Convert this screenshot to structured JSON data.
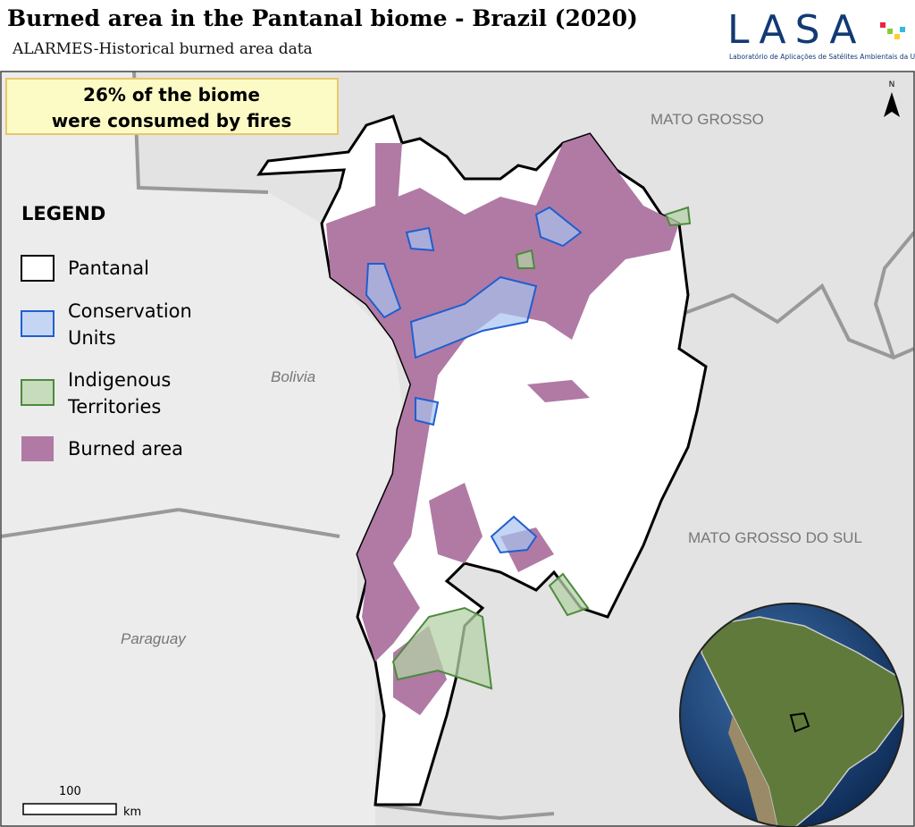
{
  "header": {
    "title": "Burned area in the Pantanal biome - Brazil (2020)",
    "subtitle": "ALARMES-Historical burned area data"
  },
  "logo": {
    "name": "LASA",
    "caption": "Laboratório de Aplicações de Satélites Ambientais da UFRJ"
  },
  "callout": {
    "lines": [
      "26% of the biome",
      "were consumed by fires"
    ]
  },
  "legend": {
    "title": "LEGEND",
    "items": [
      {
        "lines": [
          "Pantanal"
        ]
      },
      {
        "lines": [
          "Conservation",
          "Units"
        ]
      },
      {
        "lines": [
          "Indigenous",
          "Territories"
        ]
      },
      {
        "lines": [
          "Burned area"
        ]
      }
    ]
  },
  "places": [
    "MATO GROSSO",
    "Bolivia",
    "MATO GROSSO DO SUL",
    "Paraguay"
  ],
  "north": "N",
  "scale": {
    "value": 100,
    "unit": "km"
  }
}
